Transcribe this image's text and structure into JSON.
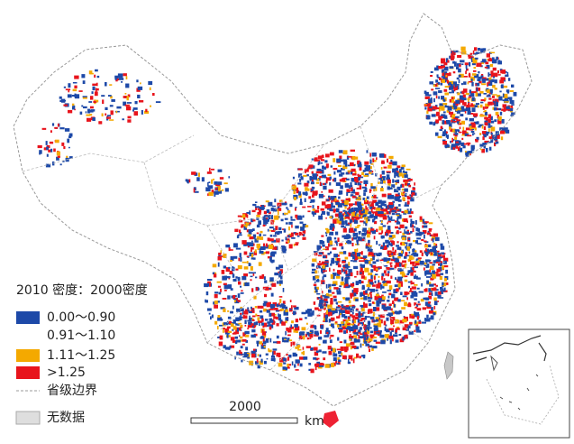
{
  "legend": {
    "title": "2010 密度：2000密度",
    "items": [
      {
        "label": "0.00～0.90",
        "color": "#1d49a8"
      },
      {
        "label": "0.91～1.10"
      },
      {
        "label": "1.11～1.25",
        "color": "#f4a900"
      },
      {
        "label": ">1.25",
        "color": "#e8141c"
      },
      {
        "label": "省级边界"
      },
      {
        "label": "无数据",
        "color": "#dedede"
      }
    ]
  },
  "scale_bar": {
    "label": "2000",
    "unit": "km"
  }
}
